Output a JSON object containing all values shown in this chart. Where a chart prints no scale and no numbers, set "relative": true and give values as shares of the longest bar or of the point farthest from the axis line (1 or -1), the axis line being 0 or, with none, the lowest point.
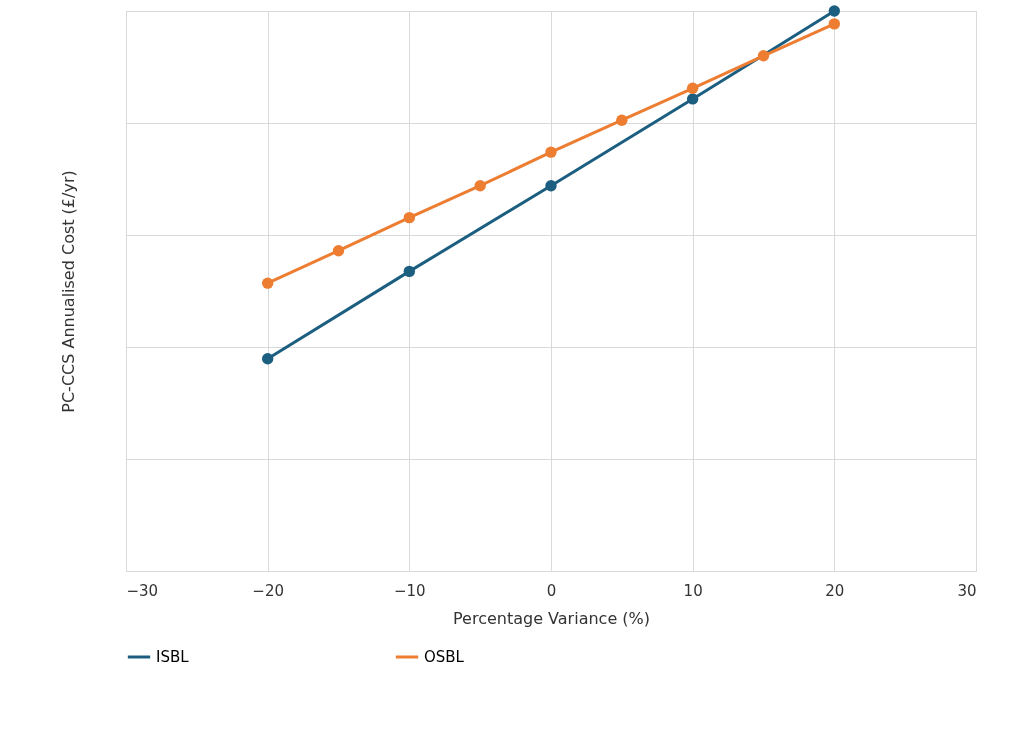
{
  "chart_data": {
    "type": "line",
    "xlabel": "Percentage Variance (%)",
    "ylabel": "PC-CCS Annualised Cost (£/yr)",
    "relative": true,
    "xlim": [
      -30,
      30
    ],
    "xticks": [
      -30,
      -20,
      -10,
      0,
      10,
      20,
      30
    ],
    "grid": true,
    "legend": "bottom",
    "marker": "circle",
    "series": [
      {
        "name": "ISBL",
        "color": "#1b5e80",
        "x": [
          -20,
          -10,
          0,
          10,
          20
        ],
        "values": [
          0.379,
          0.535,
          0.688,
          0.843,
          1
        ]
      },
      {
        "name": "OSBL",
        "color": "#ed7d31",
        "x": [
          -20,
          -15,
          -10,
          -5,
          0,
          5,
          10,
          15,
          20
        ],
        "values": [
          0.514,
          0.572,
          0.631,
          0.688,
          0.748,
          0.805,
          0.862,
          0.92,
          0.977
        ]
      }
    ]
  }
}
